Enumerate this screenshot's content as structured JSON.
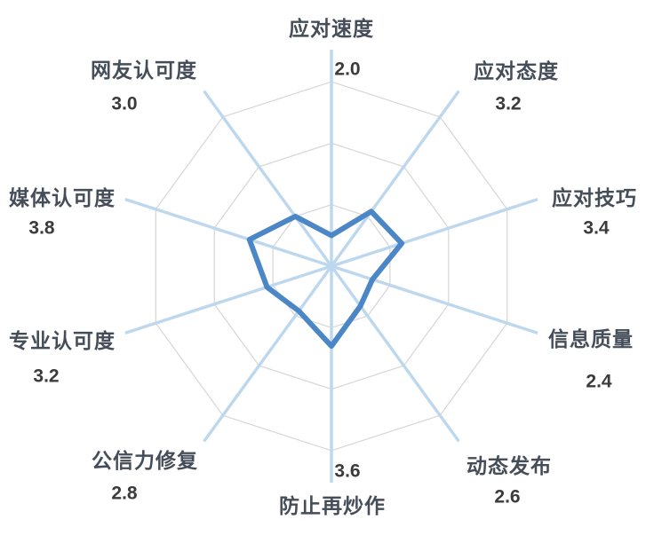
{
  "chart_data": {
    "type": "radar",
    "title": "",
    "legend": "none",
    "grid": "on",
    "categories": [
      "应对速度",
      "应对态度",
      "应对技巧",
      "信息质量",
      "动态发布",
      "防止再炒作",
      "公信力修复",
      "专业认可度",
      "媒体认可度",
      "网友认可度"
    ],
    "values": [
      2.0,
      3.2,
      3.4,
      2.4,
      2.6,
      3.6,
      2.8,
      3.2,
      3.8,
      3.0
    ],
    "value_labels": [
      "2.0",
      "3.2",
      "3.4",
      "2.4",
      "2.6",
      "3.6",
      "2.8",
      "3.2",
      "3.8",
      "3.0"
    ],
    "axis_range": [
      1,
      7
    ],
    "ring_values": [
      3,
      5,
      7
    ],
    "colors": {
      "series_stroke": "#4b86c7",
      "axis_line": "#bdd7ee",
      "grid_ring": "#d6d6d6",
      "category_label": "#454d59",
      "value_label": "#3b3b3b",
      "background": "#ffffff"
    }
  }
}
